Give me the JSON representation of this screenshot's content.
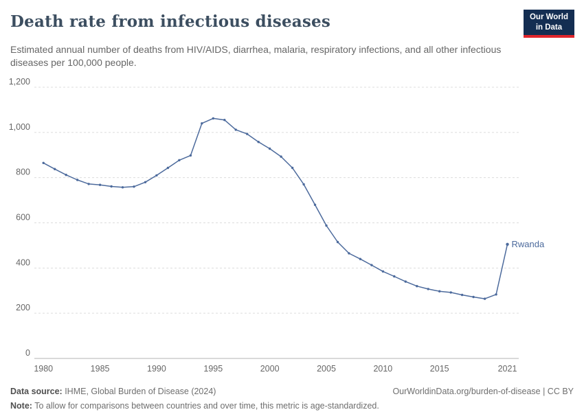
{
  "header": {
    "title": "Death rate from infectious diseases",
    "subtitle": "Estimated annual number of deaths from HIV/AIDS, diarrhea, malaria, respiratory infections, and all other infectious diseases per 100,000 people.",
    "logo": {
      "line1": "Our World",
      "line2": "in Data",
      "bg_color": "#142e52",
      "accent_color": "#e0252c"
    }
  },
  "chart_data": {
    "type": "line",
    "title": "Death rate from infectious diseases",
    "xlabel": "",
    "ylabel": "",
    "grid": true,
    "xlim": [
      1979.5,
      2022
    ],
    "ylim": [
      0,
      1200
    ],
    "line_color": "#4c6a9c",
    "x": [
      1980,
      1981,
      1982,
      1983,
      1984,
      1985,
      1986,
      1987,
      1988,
      1989,
      1990,
      1991,
      1992,
      1993,
      1994,
      1995,
      1996,
      1997,
      1998,
      1999,
      2000,
      2001,
      2002,
      2003,
      2004,
      2005,
      2006,
      2007,
      2008,
      2009,
      2010,
      2011,
      2012,
      2013,
      2014,
      2015,
      2016,
      2017,
      2018,
      2019,
      2020,
      2021
    ],
    "series": [
      {
        "name": "Rwanda",
        "color": "#4c6a9c",
        "values": [
          865,
          838,
          812,
          790,
          772,
          768,
          761,
          757,
          760,
          780,
          810,
          843,
          877,
          898,
          1040,
          1062,
          1055,
          1012,
          993,
          958,
          928,
          893,
          843,
          770,
          680,
          588,
          515,
          465,
          440,
          413,
          385,
          363,
          340,
          320,
          307,
          297,
          292,
          281,
          272,
          264,
          283,
          505
        ]
      }
    ],
    "x_ticks": [
      {
        "value": 1980,
        "label": "1980"
      },
      {
        "value": 1985,
        "label": "1985"
      },
      {
        "value": 1990,
        "label": "1990"
      },
      {
        "value": 1995,
        "label": "1995"
      },
      {
        "value": 2000,
        "label": "2000"
      },
      {
        "value": 2005,
        "label": "2005"
      },
      {
        "value": 2010,
        "label": "2010"
      },
      {
        "value": 2015,
        "label": "2015"
      },
      {
        "value": 2021,
        "label": "2021"
      }
    ],
    "y_ticks": [
      {
        "value": 0,
        "label": "0"
      },
      {
        "value": 200,
        "label": "200"
      },
      {
        "value": 400,
        "label": "400"
      },
      {
        "value": 600,
        "label": "600"
      },
      {
        "value": 800,
        "label": "800"
      },
      {
        "value": 1000,
        "label": "1,000"
      },
      {
        "value": 1200,
        "label": "1,200"
      }
    ],
    "end_label": "Rwanda"
  },
  "footer": {
    "source_label": "Data source:",
    "source_text": " IHME, Global Burden of Disease (2024)",
    "link": "OurWorldinData.org/burden-of-disease | CC BY",
    "note_label": "Note:",
    "note_text": " To allow for comparisons between countries and over time, this metric is age-standardized."
  }
}
